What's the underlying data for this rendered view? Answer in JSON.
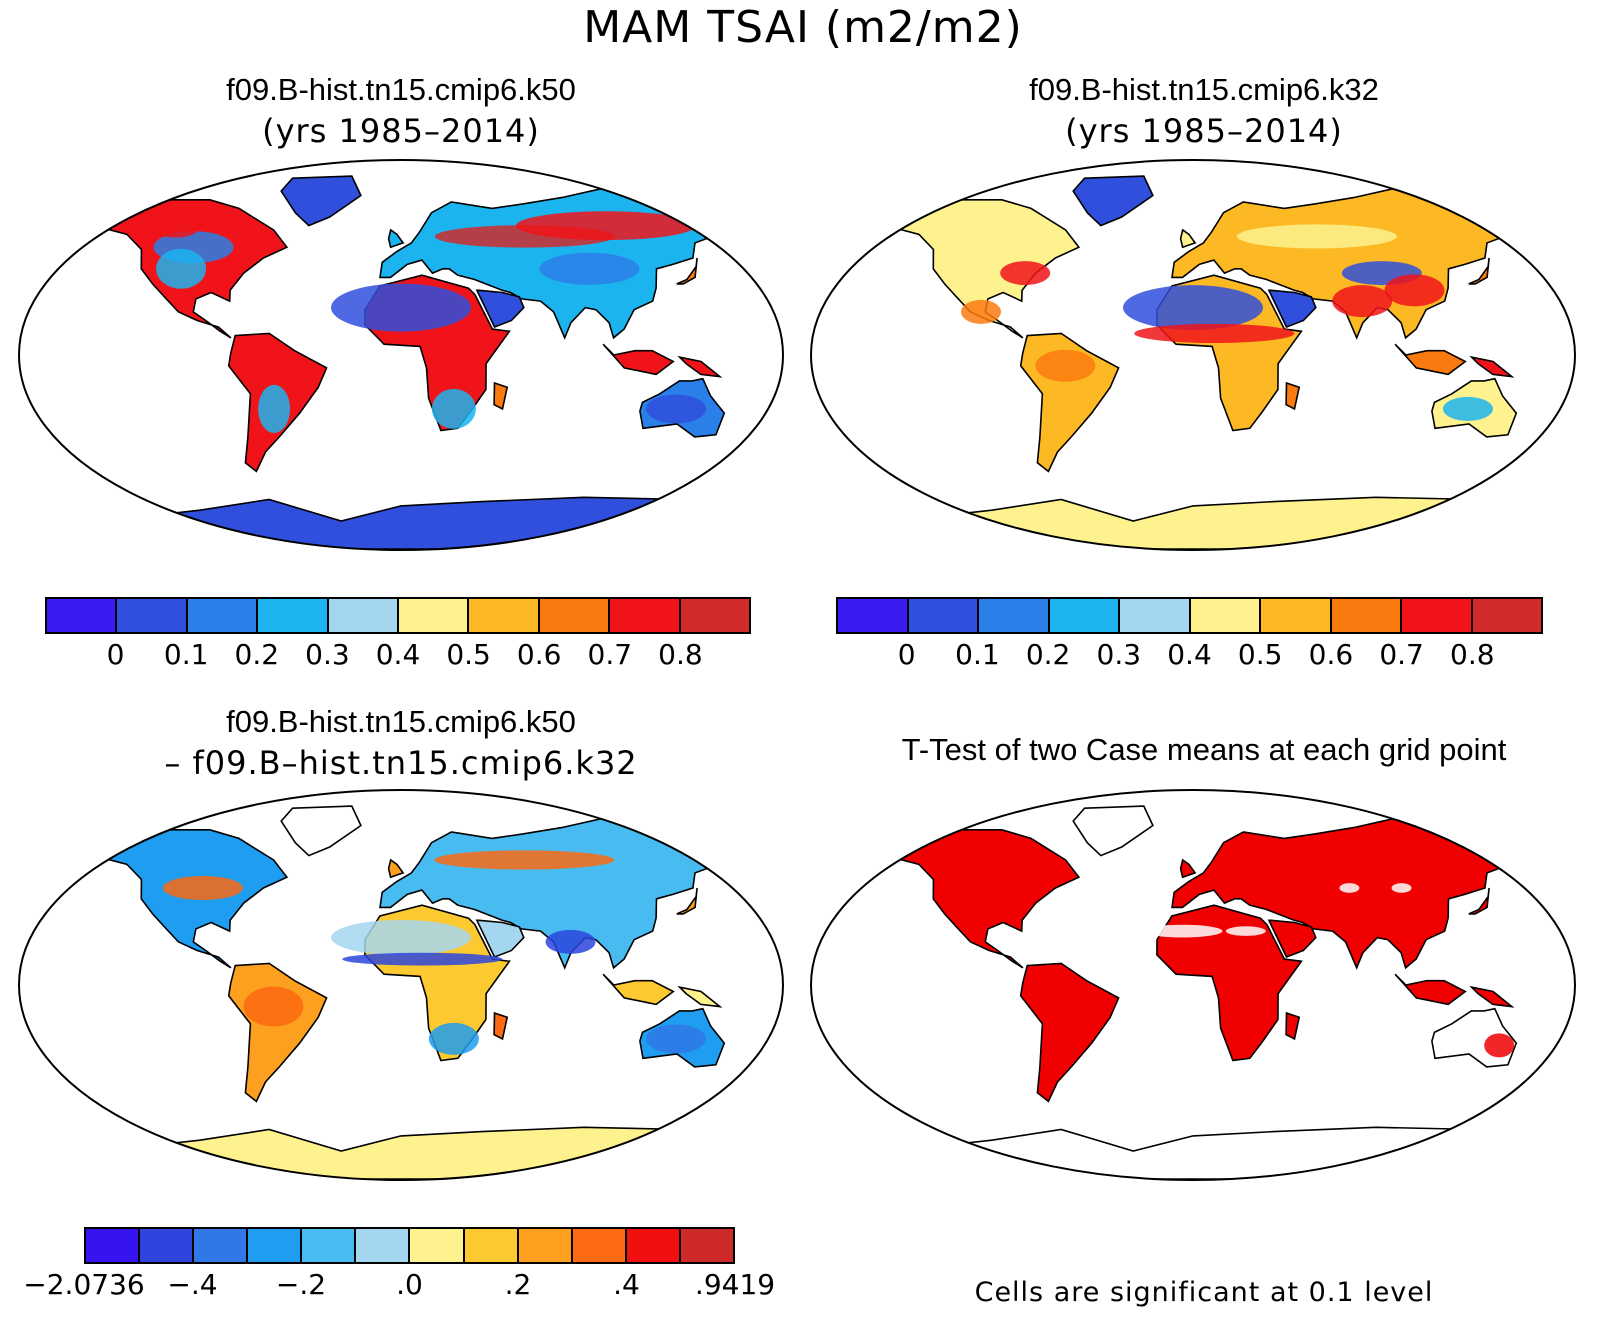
{
  "title": "MAM TSAI (m2/m2)",
  "panels": [
    {
      "id": "k50",
      "title": "f09.B-hist.tn15.cmip6.k50",
      "subtitle": "(yrs 1985–2014)",
      "palette": "abs"
    },
    {
      "id": "k32",
      "title": "f09.B-hist.tn15.cmip6.k32",
      "subtitle": "(yrs 1985–2014)",
      "palette": "abs"
    },
    {
      "id": "diff",
      "title": "f09.B-hist.tn15.cmip6.k50",
      "subtitle": "– f09.B–hist.tn15.cmip6.k32",
      "palette": "diff"
    },
    {
      "id": "ttest",
      "title": "T-Test of two Case means at each grid point",
      "subtitle": "",
      "palette": "sig"
    }
  ],
  "colorbar_abs": {
    "colors": [
      "#3b1cf0",
      "#2f4fdc",
      "#2a7fe8",
      "#1cb4ee",
      "#a5d6f0",
      "#fdf28e",
      "#fdb924",
      "#fb7a10",
      "#f0141a",
      "#d02a2a"
    ],
    "labels": [
      "0",
      "0.1",
      "0.2",
      "0.3",
      "0.4",
      "0.5",
      "0.6",
      "0.7",
      "0.8"
    ]
  },
  "colorbar_diff": {
    "colors": [
      "#3514ef",
      "#2d45dc",
      "#2f78e6",
      "#1f9df0",
      "#48bcf0",
      "#a5d6f0",
      "#fdf28e",
      "#fdc930",
      "#fda020",
      "#fb6a12",
      "#f01010",
      "#cf2a2a"
    ],
    "labels": [
      "−2.0736",
      "−.4",
      "−.2",
      ".0",
      ".2",
      ".4",
      ".9419"
    ]
  },
  "significance_color": "#f00000",
  "ttest_note": "Cells are significant at 0.1 level"
}
